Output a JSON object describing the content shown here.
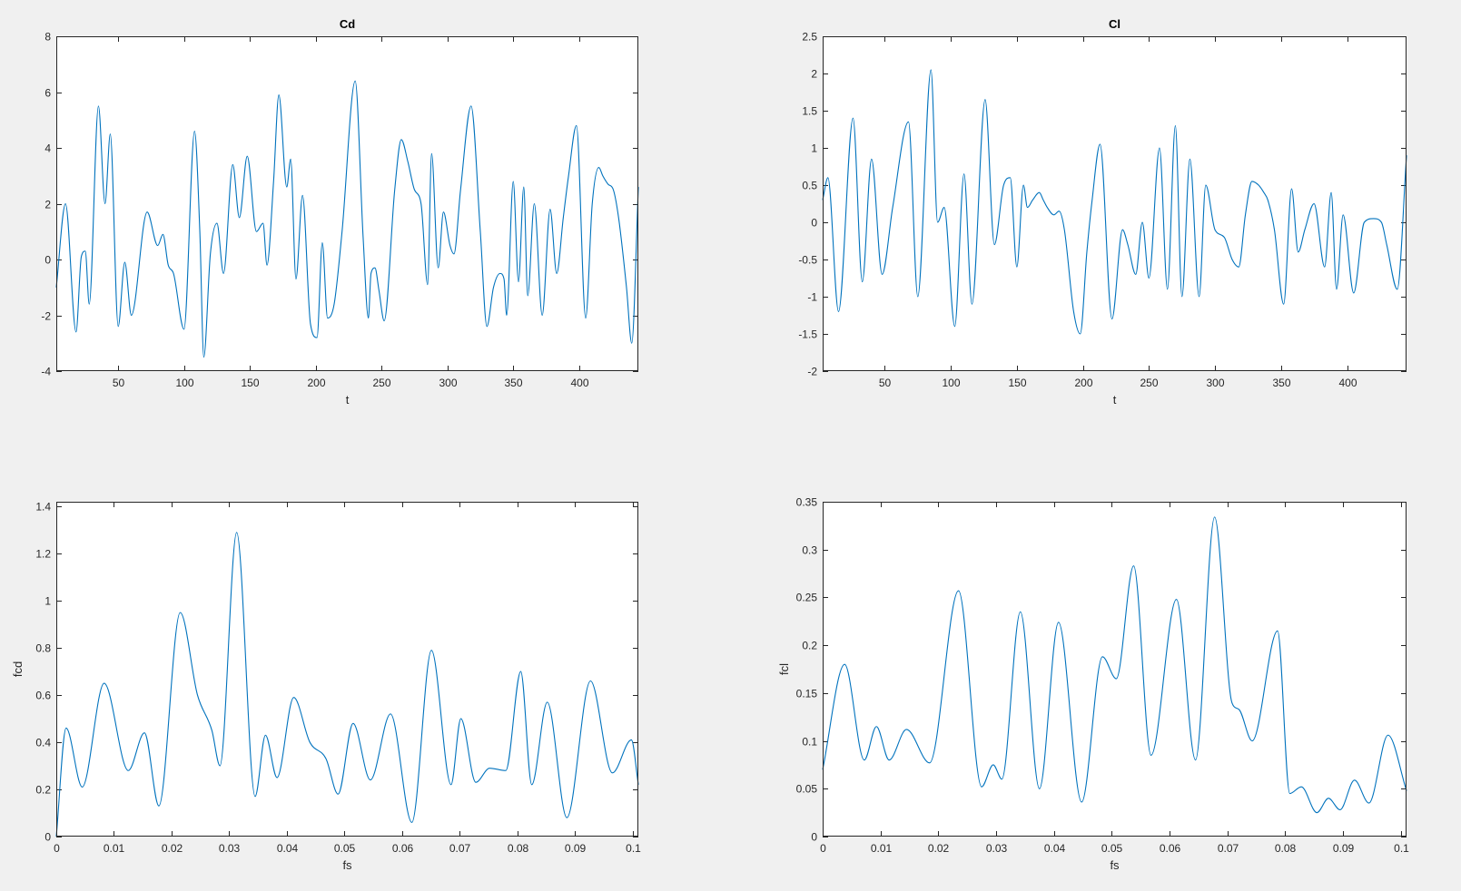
{
  "figure": {
    "background": "#f0f0f0"
  },
  "chart_data": [
    {
      "type": "line",
      "title": "Cd",
      "xlabel": "t",
      "ylabel": "",
      "xlim": [
        3,
        445
      ],
      "ylim": [
        -4,
        8
      ],
      "xticks": [
        50,
        100,
        150,
        200,
        250,
        300,
        350,
        400
      ],
      "xtick_labels": [
        "50",
        "100",
        "150",
        "200",
        "250",
        "300",
        "350",
        "400"
      ],
      "yticks": [
        -4,
        -2,
        0,
        2,
        4,
        6,
        8
      ],
      "ytick_labels": [
        "-4",
        "-2",
        "0",
        "2",
        "4",
        "6",
        "8"
      ],
      "grid": false,
      "color": "#0072bd",
      "series": [
        {
          "x": [
            3,
            10,
            18,
            22,
            25,
            28,
            35,
            40,
            44,
            50,
            55,
            60,
            72,
            80,
            84,
            88,
            92,
            100,
            108,
            112,
            115,
            120,
            125,
            130,
            137,
            142,
            148,
            155,
            160,
            163,
            168,
            172,
            178,
            181,
            185,
            190,
            196,
            201,
            205,
            209,
            214,
            220,
            230,
            236,
            240,
            242,
            245,
            248,
            252,
            260,
            265,
            270,
            275,
            280,
            285,
            288,
            293,
            297,
            302,
            305,
            310,
            318,
            325,
            330,
            335,
            340,
            343,
            345,
            350,
            354,
            358,
            361,
            366,
            372,
            378,
            383,
            388,
            392,
            398,
            405,
            410,
            415,
            418,
            422,
            426,
            430,
            436,
            440,
            445
          ],
          "values": [
            -1,
            2,
            -2.6,
            0.1,
            0.3,
            -1.6,
            5.5,
            2,
            4.5,
            -2.4,
            -0.1,
            -2,
            1.7,
            0.5,
            0.9,
            -0.2,
            -0.5,
            -2.5,
            4.6,
            1,
            -3.5,
            0.2,
            1.3,
            -0.5,
            3.4,
            1.5,
            3.7,
            1,
            1.3,
            -0.2,
            2.8,
            5.9,
            2.6,
            3.6,
            -0.7,
            2.3,
            -2.3,
            -2.8,
            0.6,
            -2.1,
            -1.6,
            1,
            6.4,
            0.8,
            -2.1,
            -0.5,
            -0.3,
            -1.1,
            -2.2,
            2.5,
            4.3,
            3.5,
            2.5,
            2,
            -0.9,
            3.8,
            -0.3,
            1.7,
            0.5,
            0.2,
            2.5,
            5.5,
            1,
            -2.4,
            -1,
            -0.5,
            -0.7,
            -2,
            2.8,
            -0.8,
            2.6,
            -1.3,
            2,
            -2,
            1.8,
            -0.5,
            1.5,
            3,
            4.8,
            -2.1,
            2,
            3.3,
            3,
            2.7,
            2.5,
            1.5,
            -1,
            -3,
            2.6
          ]
        }
      ]
    },
    {
      "type": "line",
      "title": "Cl",
      "xlabel": "t",
      "ylabel": "",
      "xlim": [
        3,
        445
      ],
      "ylim": [
        -2,
        2.5
      ],
      "xticks": [
        50,
        100,
        150,
        200,
        250,
        300,
        350,
        400
      ],
      "xtick_labels": [
        "50",
        "100",
        "150",
        "200",
        "250",
        "300",
        "350",
        "400"
      ],
      "yticks": [
        -2,
        -1.5,
        -1,
        -0.5,
        0,
        0.5,
        1,
        1.5,
        2,
        2.5
      ],
      "ytick_labels": [
        "-2",
        "-1.5",
        "-1",
        "-0.5",
        "0",
        "0.5",
        "1",
        "1.5",
        "2",
        "2.5"
      ],
      "grid": false,
      "color": "#0072bd",
      "series": [
        {
          "x": [
            3,
            7,
            15,
            26,
            33,
            40,
            48,
            56,
            68,
            75,
            85,
            90,
            95,
            103,
            110,
            116,
            126,
            133,
            140,
            145,
            150,
            155,
            158,
            162,
            167,
            170,
            173,
            178,
            182,
            186,
            193,
            198,
            203,
            207,
            213,
            222,
            230,
            234,
            240,
            245,
            250,
            258,
            264,
            270,
            275,
            281,
            288,
            293,
            300,
            307,
            313,
            318,
            323,
            328,
            333,
            337,
            340,
            345,
            352,
            358,
            363,
            368,
            375,
            383,
            388,
            392,
            397,
            405,
            413,
            420,
            426,
            430,
            438,
            445
          ],
          "values": [
            0.3,
            0.6,
            -1.2,
            1.4,
            -0.8,
            0.85,
            -0.7,
            0.2,
            1.35,
            -1,
            2.05,
            0,
            0.2,
            -1.4,
            0.65,
            -1.1,
            1.65,
            -0.3,
            0.5,
            0.6,
            -0.6,
            0.5,
            0.2,
            0.3,
            0.4,
            0.3,
            0.2,
            0.1,
            0.15,
            -0.1,
            -1.2,
            -1.5,
            -0.4,
            0.3,
            1.05,
            -1.3,
            -0.1,
            -0.3,
            -0.7,
            0,
            -0.75,
            1,
            -0.9,
            1.3,
            -1,
            0.85,
            -1,
            0.5,
            -0.1,
            -0.2,
            -0.5,
            -0.6,
            0.1,
            0.55,
            0.5,
            0.4,
            0.3,
            -0.1,
            -1.1,
            0.45,
            -0.4,
            -0.1,
            0.25,
            -0.6,
            0.4,
            -0.9,
            0.1,
            -0.95,
            0,
            0.05,
            0,
            -0.3,
            -0.9,
            0.9
          ]
        }
      ]
    },
    {
      "type": "line",
      "title": "",
      "xlabel": "fs",
      "ylabel": "fcd",
      "xlim": [
        0,
        0.101
      ],
      "ylim": [
        0,
        1.42
      ],
      "xticks": [
        0,
        0.01,
        0.02,
        0.03,
        0.04,
        0.05,
        0.06,
        0.07,
        0.08,
        0.09,
        0.1
      ],
      "xtick_labels": [
        "0",
        "0.01",
        "0.02",
        "0.03",
        "0.04",
        "0.05",
        "0.06",
        "0.07",
        "0.08",
        "0.09",
        "0.1"
      ],
      "yticks": [
        0,
        0.2,
        0.4,
        0.6,
        0.8,
        1,
        1.2,
        1.4
      ],
      "ytick_labels": [
        "0",
        "0.2",
        "0.4",
        "0.6",
        "0.8",
        "1",
        "1.2",
        "1.4"
      ],
      "grid": false,
      "color": "#0072bd",
      "series": [
        {
          "x": [
            0,
            0.0017,
            0.0045,
            0.0083,
            0.0125,
            0.0153,
            0.0178,
            0.0215,
            0.0245,
            0.027,
            0.0284,
            0.0313,
            0.0345,
            0.0363,
            0.0383,
            0.0412,
            0.044,
            0.0468,
            0.0489,
            0.0515,
            0.0545,
            0.058,
            0.0617,
            0.0651,
            0.0685,
            0.0702,
            0.0728,
            0.0752,
            0.078,
            0.0806,
            0.0825,
            0.0852,
            0.0886,
            0.0927,
            0.0965,
            0.0998,
            0.101
          ],
          "values": [
            0,
            0.46,
            0.21,
            0.65,
            0.28,
            0.44,
            0.13,
            0.95,
            0.6,
            0.45,
            0.3,
            1.29,
            0.17,
            0.43,
            0.25,
            0.59,
            0.4,
            0.33,
            0.18,
            0.48,
            0.24,
            0.52,
            0.06,
            0.79,
            0.22,
            0.5,
            0.23,
            0.29,
            0.28,
            0.7,
            0.22,
            0.57,
            0.08,
            0.66,
            0.27,
            0.41,
            0.22
          ]
        }
      ]
    },
    {
      "type": "line",
      "title": "",
      "xlabel": "fs",
      "ylabel": "fcl",
      "xlim": [
        0,
        0.101
      ],
      "ylim": [
        0,
        0.35
      ],
      "xticks": [
        0,
        0.01,
        0.02,
        0.03,
        0.04,
        0.05,
        0.06,
        0.07,
        0.08,
        0.09,
        0.1
      ],
      "xtick_labels": [
        "0",
        "0.01",
        "0.02",
        "0.03",
        "0.04",
        "0.05",
        "0.06",
        "0.07",
        "0.08",
        "0.09",
        "0.1"
      ],
      "yticks": [
        0,
        0.05,
        0.1,
        0.15,
        0.2,
        0.25,
        0.3,
        0.35
      ],
      "ytick_labels": [
        "0",
        "0.05",
        "0.1",
        "0.15",
        "0.2",
        "0.25",
        "0.3",
        "0.35"
      ],
      "grid": false,
      "color": "#0072bd",
      "series": [
        {
          "x": [
            0,
            0.0038,
            0.0072,
            0.0093,
            0.0115,
            0.0145,
            0.0185,
            0.0235,
            0.0275,
            0.0295,
            0.031,
            0.0342,
            0.0375,
            0.0408,
            0.0448,
            0.0484,
            0.0508,
            0.0538,
            0.0568,
            0.0612,
            0.0645,
            0.0678,
            0.0708,
            0.072,
            0.0743,
            0.0787,
            0.0808,
            0.0828,
            0.0855,
            0.0875,
            0.0895,
            0.092,
            0.0945,
            0.0978,
            0.101
          ],
          "values": [
            0.07,
            0.18,
            0.08,
            0.115,
            0.08,
            0.112,
            0.077,
            0.257,
            0.052,
            0.075,
            0.06,
            0.235,
            0.05,
            0.224,
            0.036,
            0.188,
            0.165,
            0.283,
            0.085,
            0.248,
            0.08,
            0.334,
            0.14,
            0.133,
            0.1,
            0.215,
            0.045,
            0.052,
            0.025,
            0.04,
            0.028,
            0.059,
            0.035,
            0.106,
            0.048
          ]
        }
      ]
    }
  ]
}
